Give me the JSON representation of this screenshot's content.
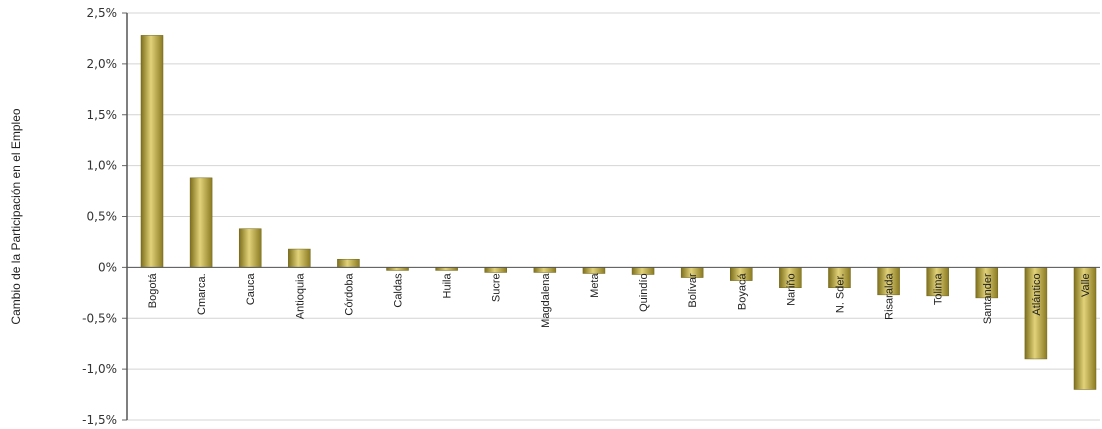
{
  "chart_data": {
    "type": "bar",
    "title": "",
    "xlabel": "",
    "ylabel": "Cambio de la Participación en el Empleo",
    "ylim": [
      -1.5,
      2.5
    ],
    "yticks": [
      2.5,
      2.0,
      1.5,
      1.0,
      0.5,
      0,
      -0.5,
      -1.0,
      -1.5
    ],
    "ytick_labels": [
      "2,5%",
      "2,0%",
      "1,5%",
      "1,0%",
      "0,5%",
      "0%",
      "-0,5%",
      "-1,0%",
      "-1,5%"
    ],
    "grid": true,
    "legend": "none",
    "bar_color": "#b3a23a",
    "categories": [
      "Bogotá",
      "Cmarca.",
      "Cauca",
      "Antioquia",
      "Córdoba",
      "Caldas",
      "Huila",
      "Sucre",
      "Magdalena",
      "Meta",
      "Quindío",
      "Bolívar",
      "Boyacá",
      "Nariño",
      "N. Sder.",
      "Risaralda",
      "Tolima",
      "Santander",
      "Atlántico",
      "Valle"
    ],
    "values": [
      2.28,
      0.88,
      0.38,
      0.18,
      0.08,
      -0.03,
      -0.03,
      -0.05,
      -0.05,
      -0.06,
      -0.07,
      -0.1,
      -0.13,
      -0.2,
      -0.2,
      -0.27,
      -0.28,
      -0.3,
      -0.9,
      -1.2
    ]
  }
}
